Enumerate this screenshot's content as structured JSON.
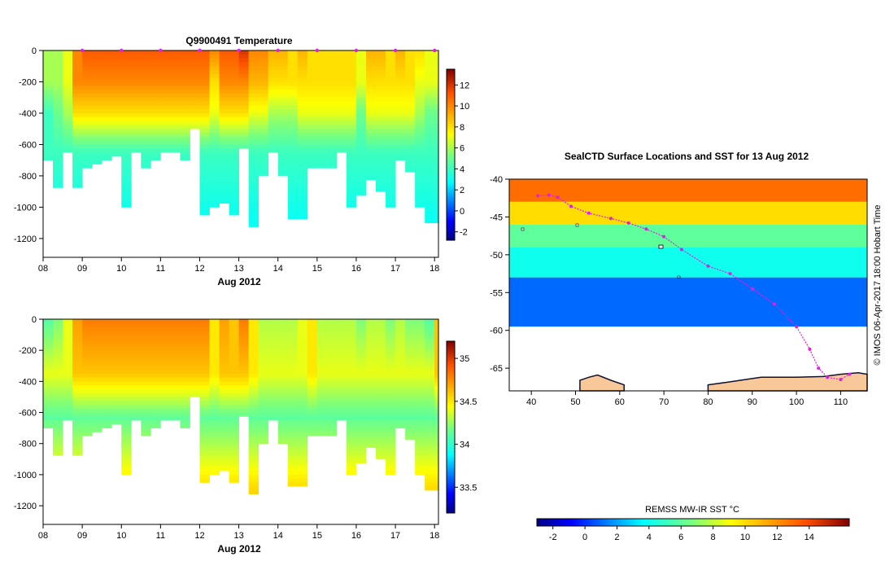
{
  "chart_data": [
    {
      "type": "heatmap",
      "panel": "temperature-section",
      "title": "Q9900491  Temperature",
      "xlabel": "Aug 2012",
      "ylabel": "",
      "x_tick_labels": [
        "08",
        "09",
        "10",
        "11",
        "12",
        "13",
        "14",
        "15",
        "16",
        "17",
        "18"
      ],
      "x_range": [
        8,
        18.1
      ],
      "y_tick_labels": [
        "0",
        "-200",
        "-400",
        "-600",
        "-800",
        "-1000",
        "-1200"
      ],
      "y_range": [
        -1320,
        0
      ],
      "colorbar": {
        "ticks": [
          "-2",
          "0",
          "2",
          "4",
          "6",
          "8",
          "10",
          "12"
        ],
        "range": [
          -2.8,
          13.5
        ]
      },
      "surface_markers_day": [
        9,
        10,
        11,
        12,
        13,
        14,
        15,
        16,
        17,
        18
      ],
      "profile_days": [
        8.0,
        8.25,
        8.5,
        8.75,
        9.0,
        9.25,
        9.5,
        9.75,
        10.0,
        10.25,
        10.5,
        10.75,
        11.0,
        11.25,
        11.5,
        11.75,
        12.0,
        12.25,
        12.5,
        12.75,
        13.0,
        13.25,
        13.5,
        13.75,
        14.0,
        14.25,
        14.5,
        14.75,
        15.0,
        15.25,
        15.5,
        15.75,
        16.0,
        16.25,
        16.5,
        16.75,
        17.0,
        17.25,
        17.5,
        17.75,
        18.0
      ],
      "profile_max_depth_m": [
        700,
        860,
        650,
        860,
        740,
        710,
        690,
        660,
        1000,
        650,
        740,
        700,
        640,
        650,
        700,
        500,
        1030,
        1000,
        960,
        1030,
        620,
        1110,
        780,
        640,
        790,
        1060,
        1060,
        750,
        750,
        750,
        650,
        1000,
        910,
        810,
        900,
        1000,
        690,
        760,
        1000,
        1090,
        1090
      ],
      "surface_temp_c": [
        6,
        6,
        7,
        10,
        11,
        11,
        11,
        11,
        11,
        11,
        11,
        11,
        11,
        11,
        11,
        11,
        11,
        10,
        11,
        11,
        12,
        10,
        10,
        9,
        9,
        8,
        9,
        8,
        8,
        8,
        8,
        8,
        7,
        9,
        9,
        8,
        9,
        8,
        8,
        7,
        7
      ],
      "temp_at_200m_c": [
        6,
        6,
        7,
        10,
        10,
        10,
        10,
        10,
        10,
        10,
        10,
        10,
        10,
        10,
        10,
        10,
        10,
        8,
        10,
        10,
        10,
        9,
        9,
        8,
        8,
        8,
        8,
        8,
        8,
        8,
        8,
        8,
        7,
        8,
        8,
        8,
        8,
        8,
        7,
        7,
        7
      ],
      "temp_at_400m_c": [
        4,
        5,
        6,
        8,
        8,
        8,
        8,
        8,
        8,
        8,
        8,
        8,
        8,
        8,
        8,
        8,
        8,
        7,
        8,
        8,
        8,
        7,
        7,
        6,
        6,
        6,
        7,
        7,
        7,
        7,
        7,
        7,
        5,
        7,
        7,
        7,
        7,
        7,
        6,
        5,
        5
      ],
      "deep_temp_c": 3
    },
    {
      "type": "heatmap",
      "panel": "salinity-section",
      "title": "",
      "xlabel": "Aug 2012",
      "ylabel": "",
      "x_tick_labels": [
        "08",
        "09",
        "10",
        "11",
        "12",
        "13",
        "14",
        "15",
        "16",
        "17",
        "18"
      ],
      "x_range": [
        8,
        18.1
      ],
      "y_tick_labels": [
        "0",
        "-200",
        "-400",
        "-600",
        "-800",
        "-1000",
        "-1200"
      ],
      "y_range": [
        -1320,
        0
      ],
      "colorbar": {
        "ticks": [
          "33.5",
          "34",
          "34.5",
          "35"
        ],
        "range": [
          33.2,
          35.2
        ]
      },
      "profile_days": [
        8.0,
        8.25,
        8.5,
        8.75,
        9.0,
        9.25,
        9.5,
        9.75,
        10.0,
        10.25,
        10.5,
        10.75,
        11.0,
        11.25,
        11.5,
        11.75,
        12.0,
        12.25,
        12.5,
        12.75,
        13.0,
        13.25,
        13.5,
        13.75,
        14.0,
        14.25,
        14.5,
        14.75,
        15.0,
        15.25,
        15.5,
        15.75,
        16.0,
        16.25,
        16.5,
        16.75,
        17.0,
        17.25,
        17.5,
        17.75,
        18.0
      ],
      "profile_max_depth_m": [
        700,
        860,
        650,
        860,
        740,
        710,
        690,
        660,
        1000,
        650,
        740,
        700,
        640,
        650,
        700,
        500,
        1030,
        1000,
        960,
        1030,
        620,
        1110,
        780,
        640,
        790,
        1060,
        1060,
        750,
        750,
        750,
        650,
        1000,
        910,
        810,
        900,
        1000,
        690,
        760,
        1000,
        1090,
        1090
      ],
      "surface_salinity_psu": [
        34.1,
        34.2,
        34.4,
        34.7,
        34.8,
        34.8,
        34.8,
        34.8,
        34.8,
        34.8,
        34.8,
        34.8,
        34.8,
        34.8,
        34.8,
        34.8,
        34.8,
        34.5,
        34.7,
        34.6,
        34.8,
        34.5,
        34.3,
        34.3,
        34.3,
        34.3,
        34.4,
        34.5,
        34.3,
        34.3,
        34.3,
        34.3,
        34.2,
        34.3,
        34.3,
        34.2,
        34.3,
        34.2,
        34.2,
        34.1,
        34.6
      ],
      "deep_salinity_psu": 34.25
    },
    {
      "type": "heatmap",
      "panel": "sst-map",
      "title": "SealCTD Surface Locations and SST for 13 Aug 2012",
      "xlabel": "",
      "ylabel": "",
      "x_tick_labels": [
        "40",
        "50",
        "60",
        "70",
        "80",
        "90",
        "100",
        "110"
      ],
      "x_range": [
        35,
        116
      ],
      "y_tick_labels": [
        "-40",
        "-45",
        "-50",
        "-55",
        "-60",
        "-65"
      ],
      "y_range": [
        -68,
        -40
      ],
      "sst_bands": [
        {
          "lat_from": -40,
          "lat_to": -43,
          "sst_c": 13
        },
        {
          "lat_from": -43,
          "lat_to": -46,
          "sst_c": 10
        },
        {
          "lat_from": -46,
          "lat_to": -49,
          "sst_c": 6
        },
        {
          "lat_from": -49,
          "lat_to": -53,
          "sst_c": 4
        },
        {
          "lat_from": -53,
          "lat_to": -59.5,
          "sst_c": 1
        }
      ],
      "ice_edge_lat": -59.5,
      "track": [
        [
          41.5,
          -42.2
        ],
        [
          44,
          -42.1
        ],
        [
          46,
          -42.4
        ],
        [
          49,
          -43.6
        ],
        [
          53,
          -44.5
        ],
        [
          58,
          -45.2
        ],
        [
          62,
          -45.8
        ],
        [
          66,
          -46.6
        ],
        [
          70,
          -47.6
        ],
        [
          74,
          -49.3
        ],
        [
          80,
          -51.5
        ],
        [
          85,
          -52.5
        ],
        [
          90,
          -54.5
        ],
        [
          95,
          -56.5
        ],
        [
          100,
          -59.5
        ],
        [
          103,
          -62.5
        ],
        [
          105,
          -65
        ],
        [
          107,
          -66.2
        ],
        [
          110,
          -66.5
        ],
        [
          112,
          -65.8
        ]
      ],
      "colorbar": {
        "title": "REMSS MW-IR SST °C",
        "ticks": [
          "-2",
          "0",
          "2",
          "4",
          "6",
          "8",
          "10",
          "12",
          "14"
        ],
        "range": [
          -3,
          16.5
        ]
      }
    }
  ],
  "map_caption": "© IMOS 06-Apr-2017 18:00 Hobart Time",
  "colors": {
    "track": "#e020e0",
    "land": "#f8c898",
    "coast": "#101030"
  }
}
